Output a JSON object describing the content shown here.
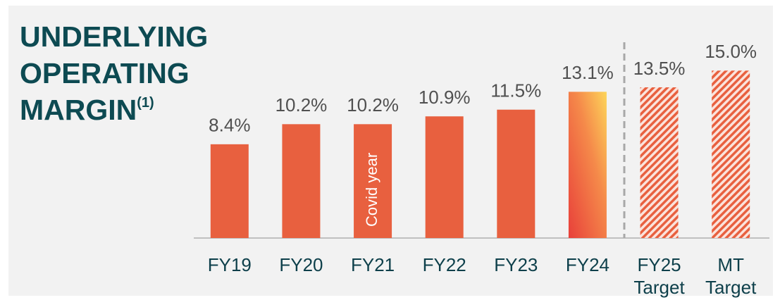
{
  "chart_data": {
    "type": "bar",
    "title": "UNDERLYING OPERATING MARGIN",
    "title_note": "(1)",
    "categories": [
      "FY19",
      "FY20",
      "FY21",
      "FY22",
      "FY23",
      "FY24",
      "FY25 Target",
      "MT Target"
    ],
    "values": [
      8.4,
      10.2,
      10.2,
      10.9,
      11.5,
      13.1,
      13.5,
      15.0
    ],
    "value_labels": [
      "8.4%",
      "10.2%",
      "10.2%",
      "10.9%",
      "11.5%",
      "13.1%",
      "13.5%",
      "15.0%"
    ],
    "color": "#e8603f",
    "bar_styles": [
      "solid",
      "solid",
      "solid",
      "solid",
      "solid",
      "gradient",
      "hatched",
      "hatched"
    ],
    "annotations": [
      {
        "text": "Covid year",
        "category": "FY21"
      }
    ],
    "ylim": [
      0,
      20
    ]
  }
}
